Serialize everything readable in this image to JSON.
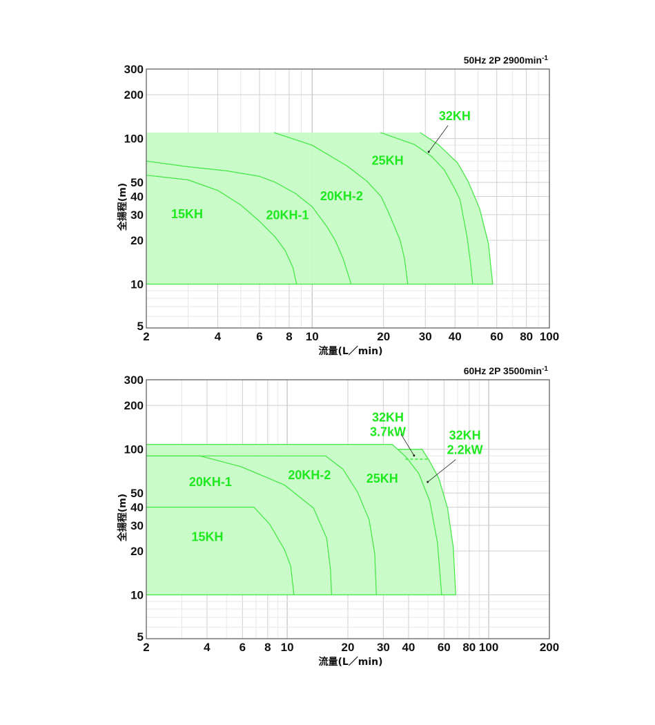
{
  "colors": {
    "fill": "#c6fcc6",
    "curve": "#3ee83e",
    "label": "#1ee81e",
    "grid_minor": "#e8e8e8",
    "grid_major": "#cfcfcf",
    "frame": "#555555",
    "arrow": "#222222"
  },
  "chart_data": [
    {
      "type": "line",
      "title": "50Hz 2P 2900min",
      "title_sup": "-1",
      "xlabel": "流量(L／min)",
      "ylabel": "全揚程(m)",
      "xscale": "log",
      "yscale": "log",
      "xlim": [
        2,
        100
      ],
      "ylim": [
        5,
        300
      ],
      "xticks": [
        2,
        4,
        6,
        8,
        10,
        20,
        30,
        40,
        60,
        80,
        100
      ],
      "yticks": [
        300,
        200,
        100,
        50,
        40,
        30,
        20,
        10,
        5
      ],
      "grid": true,
      "envelope": [
        [
          2,
          110
        ],
        [
          28.5,
          110
        ],
        [
          34,
          91
        ],
        [
          41,
          68
        ],
        [
          45.4,
          51
        ],
        [
          50.8,
          33
        ],
        [
          55.3,
          19
        ],
        [
          57.7,
          10
        ],
        [
          2,
          10
        ]
      ],
      "series": [
        {
          "name": "15KH",
          "points": [
            [
              2,
              56
            ],
            [
              3,
              52
            ],
            [
              4,
              44
            ],
            [
              5,
              35
            ],
            [
              6,
              27
            ],
            [
              7,
              21
            ],
            [
              7.7,
              17
            ],
            [
              8.3,
              13
            ],
            [
              8.6,
              10
            ]
          ]
        },
        {
          "name": "20KH-1",
          "points": [
            [
              2,
              70
            ],
            [
              3,
              64
            ],
            [
              4.35,
              60
            ],
            [
              6,
              55
            ],
            [
              7,
              50
            ],
            [
              8.5,
              42
            ],
            [
              10,
              34
            ],
            [
              11.5,
              25
            ],
            [
              12.5,
              20
            ],
            [
              13.5,
              15
            ],
            [
              14.6,
              10
            ]
          ]
        },
        {
          "name": "20KH-2",
          "points": [
            [
              6.9,
              110
            ],
            [
              10,
              90
            ],
            [
              14,
              65
            ],
            [
              17,
              51
            ],
            [
              19.5,
              40
            ],
            [
              21,
              31
            ],
            [
              23.5,
              20
            ],
            [
              24.5,
              15
            ],
            [
              25.3,
              10
            ]
          ]
        },
        {
          "name": "25KH",
          "points": [
            [
              19.4,
              110
            ],
            [
              27,
              91
            ],
            [
              32,
              75
            ],
            [
              36,
              61
            ],
            [
              40,
              45
            ],
            [
              42,
              38
            ],
            [
              45,
              21
            ],
            [
              46.5,
              14
            ],
            [
              47.5,
              10
            ]
          ]
        },
        {
          "name": "32KH",
          "points": [
            [
              28.5,
              110
            ],
            [
              34,
              91
            ],
            [
              41,
              68
            ],
            [
              45.4,
              51
            ],
            [
              50.8,
              33
            ],
            [
              55.3,
              19
            ],
            [
              57.7,
              10
            ]
          ]
        }
      ],
      "labels": [
        {
          "text": [
            "15KH"
          ],
          "at": [
            2.97,
            30
          ]
        },
        {
          "text": [
            "20KH-1"
          ],
          "at": [
            7.87,
            29.4
          ]
        },
        {
          "text": [
            "20KH-2"
          ],
          "at": [
            13.3,
            39.7
          ]
        },
        {
          "text": [
            "25KH"
          ],
          "at": [
            20.8,
            70
          ]
        },
        {
          "text": [
            "32KH"
          ],
          "at": [
            39.9,
            141
          ],
          "arrow": [
            [
              37.4,
              123
            ],
            [
              31,
              81
            ]
          ]
        }
      ],
      "dashed": []
    },
    {
      "type": "line",
      "title": "60Hz 2P 3500min",
      "title_sup": "-1",
      "xlabel": "流量(L／min)",
      "ylabel": "全揚程(m)",
      "xscale": "log",
      "yscale": "log",
      "xlim": [
        2,
        200
      ],
      "ylim": [
        5,
        300
      ],
      "xticks": [
        2,
        4,
        6,
        8,
        10,
        20,
        30,
        40,
        60,
        80,
        100,
        200
      ],
      "yticks": [
        300,
        200,
        100,
        50,
        40,
        30,
        20,
        10,
        5
      ],
      "grid": true,
      "envelope": [
        [
          2,
          108
        ],
        [
          33.2,
          108
        ],
        [
          35.5,
          100
        ],
        [
          46.7,
          100
        ],
        [
          50.3,
          85
        ],
        [
          56.5,
          63.4
        ],
        [
          62.5,
          39.4
        ],
        [
          66.7,
          21.2
        ],
        [
          68.6,
          10
        ],
        [
          2,
          10
        ]
      ],
      "series": [
        {
          "name": "15KH",
          "points": [
            [
              2,
              40
            ],
            [
              6.84,
              40
            ],
            [
              8.2,
              30.5
            ],
            [
              9.7,
              20.4
            ],
            [
              10.4,
              15.8
            ],
            [
              10.8,
              10
            ]
          ]
        },
        {
          "name": "20KH-1",
          "points": [
            [
              2,
              90
            ],
            [
              3.7,
              90
            ],
            [
              5.89,
              76
            ],
            [
              9.7,
              56.8
            ],
            [
              13.5,
              39.4
            ],
            [
              15.7,
              24.5
            ],
            [
              16.4,
              15
            ],
            [
              16.6,
              10
            ]
          ]
        },
        {
          "name": "20KH-2",
          "points": [
            [
              2,
              90
            ],
            [
              15.5,
              90
            ],
            [
              18.9,
              73
            ],
            [
              22.3,
              51
            ],
            [
              25.5,
              32.8
            ],
            [
              27.2,
              19
            ],
            [
              27.7,
              10
            ]
          ]
        },
        {
          "name": "32KH 3.7kW",
          "points": [
            [
              2,
              108
            ],
            [
              33.2,
              108
            ],
            [
              39,
              88
            ],
            [
              45,
              68
            ],
            [
              51,
              44
            ],
            [
              55.6,
              23
            ],
            [
              58.4,
              10
            ]
          ]
        },
        {
          "name": "32KH 2.2kW",
          "points": [
            [
              35.5,
              100
            ],
            [
              46.7,
              100
            ],
            [
              50.3,
              85
            ],
            [
              56.5,
              63.4
            ],
            [
              62.5,
              39.4
            ],
            [
              66.7,
              21.2
            ],
            [
              68.6,
              10
            ]
          ]
        }
      ],
      "labels": [
        {
          "text": [
            "20KH-1"
          ],
          "at": [
            4.16,
            59
          ]
        },
        {
          "text": [
            "20KH-2"
          ],
          "at": [
            12.9,
            65.7
          ]
        },
        {
          "text": [
            "25KH"
          ],
          "at": [
            29.6,
            62.4
          ]
        },
        {
          "text": [
            "15KH"
          ],
          "at": [
            4.02,
            24.8
          ]
        },
        {
          "text": [
            "32KH",
            "3.7kW"
          ],
          "at": [
            31.6,
            164
          ],
          "arrow": [
            [
              36.7,
              127
            ],
            [
              42.6,
              90.5
            ]
          ]
        },
        {
          "text": [
            "32KH",
            "2.2kW"
          ],
          "at": [
            76.2,
            123
          ],
          "arrow": [
            [
              68.6,
              85
            ],
            [
              49.8,
              59.6
            ]
          ]
        }
      ],
      "dashed": [
        [
          [
            38.6,
            85.5
          ],
          [
            50.3,
            85.5
          ]
        ]
      ]
    }
  ]
}
